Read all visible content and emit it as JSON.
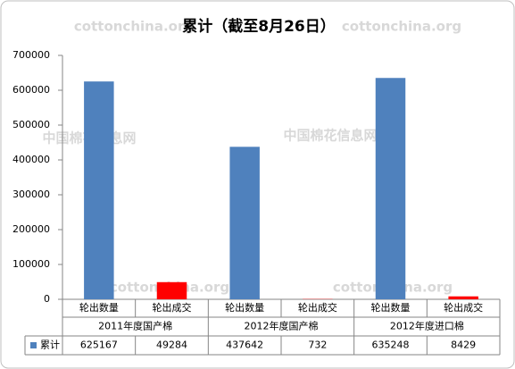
{
  "chart_data": {
    "type": "bar",
    "title": "累计（截至8月26日）",
    "categories": [
      "轮出数量",
      "轮出成交",
      "轮出数量",
      "轮出成交",
      "轮出数量",
      "轮出成交"
    ],
    "groups": [
      "2011年度国产棉",
      "2012年度国产棉",
      "2012年度进口棉"
    ],
    "series": [
      {
        "name": "累计",
        "color": "#4f81bd",
        "colors": [
          "#4f81bd",
          "#ff0000",
          "#4f81bd",
          "#ff0000",
          "#4f81bd",
          "#ff0000"
        ],
        "values": [
          625167,
          49284,
          437642,
          732,
          635248,
          8429
        ]
      }
    ],
    "ylim": [
      0,
      700000
    ],
    "yticks": [
      0,
      100000,
      200000,
      300000,
      400000,
      500000,
      600000,
      700000
    ],
    "watermarks": [
      "cottonchina.org",
      "中国棉花信息网"
    ]
  }
}
